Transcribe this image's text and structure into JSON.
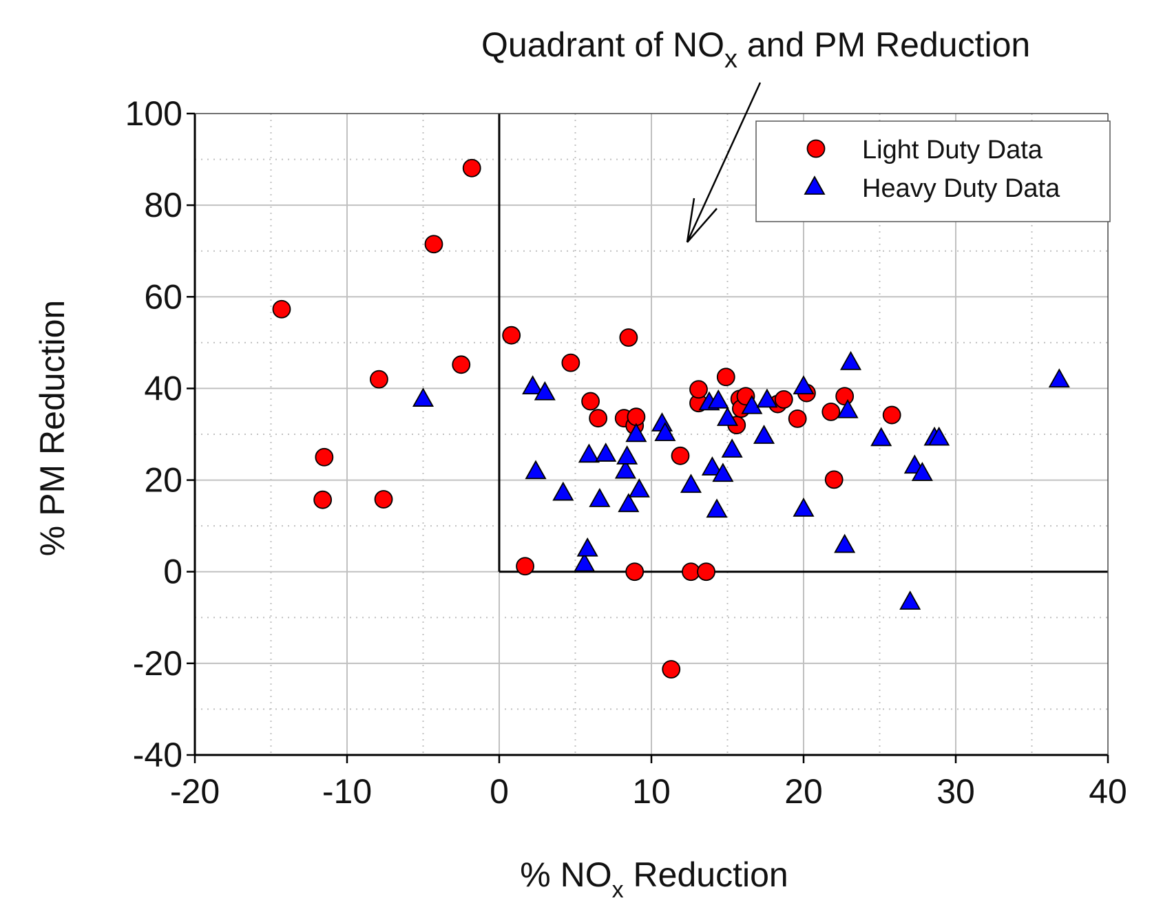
{
  "chart_data": {
    "type": "scatter",
    "title": "",
    "annotation": {
      "prefix": "Quadrant of NO",
      "subscript": "x",
      "suffix": " and PM Reduction"
    },
    "xlabel": {
      "prefix": "% NO",
      "subscript": "x",
      "suffix": " Reduction"
    },
    "ylabel": "% PM Reduction",
    "xlim": [
      -20,
      40
    ],
    "ylim": [
      -40,
      100
    ],
    "xticks": [
      -20,
      -10,
      0,
      10,
      20,
      30,
      40
    ],
    "yticks": [
      -40,
      -20,
      0,
      20,
      40,
      60,
      80,
      100
    ],
    "xgrid_minor": 5,
    "ygrid_minor": 10,
    "legend_position": "top-right",
    "colors": {
      "light_fill": "#ff0000",
      "heavy_fill": "#0000ff",
      "marker_stroke": "#000000",
      "major_grid": "#c0c0c0",
      "minor_grid": "#c0c0c0"
    },
    "series": [
      {
        "name": "Light Duty Data",
        "marker": "circle",
        "points": [
          [
            -14.3,
            57.3
          ],
          [
            -11.5,
            25.0
          ],
          [
            -11.6,
            15.7
          ],
          [
            -7.9,
            42.0
          ],
          [
            -7.6,
            15.8
          ],
          [
            -4.3,
            71.5
          ],
          [
            -1.8,
            88.1
          ],
          [
            -2.5,
            45.2
          ],
          [
            0.8,
            51.6
          ],
          [
            1.7,
            1.2
          ],
          [
            4.7,
            45.6
          ],
          [
            6.0,
            37.2
          ],
          [
            6.5,
            33.5
          ],
          [
            8.2,
            33.5
          ],
          [
            8.5,
            51.1
          ],
          [
            8.9,
            31.9
          ],
          [
            9.0,
            33.8
          ],
          [
            8.9,
            0.0
          ],
          [
            11.9,
            25.3
          ],
          [
            11.3,
            -21.3
          ],
          [
            12.6,
            0.0
          ],
          [
            13.1,
            36.8
          ],
          [
            13.1,
            39.8
          ],
          [
            13.6,
            0.0
          ],
          [
            14.9,
            42.5
          ],
          [
            15.6,
            32.0
          ],
          [
            15.8,
            37.7
          ],
          [
            15.9,
            35.6
          ],
          [
            16.2,
            38.3
          ],
          [
            18.3,
            36.6
          ],
          [
            18.7,
            37.6
          ],
          [
            19.6,
            33.4
          ],
          [
            20.2,
            39.0
          ],
          [
            21.8,
            34.9
          ],
          [
            22.0,
            20.1
          ],
          [
            22.7,
            38.3
          ],
          [
            25.8,
            34.2
          ]
        ]
      },
      {
        "name": "Heavy Duty Data",
        "marker": "triangle",
        "points": [
          [
            -5.0,
            37.5
          ],
          [
            2.2,
            40.2
          ],
          [
            2.4,
            21.7
          ],
          [
            3.0,
            38.9
          ],
          [
            4.2,
            17.0
          ],
          [
            5.6,
            1.5
          ],
          [
            5.8,
            4.8
          ],
          [
            5.9,
            25.3
          ],
          [
            6.6,
            15.6
          ],
          [
            7.0,
            25.5
          ],
          [
            8.3,
            21.8
          ],
          [
            8.4,
            24.9
          ],
          [
            8.5,
            14.5
          ],
          [
            9.0,
            29.8
          ],
          [
            9.2,
            17.7
          ],
          [
            10.7,
            32.1
          ],
          [
            10.9,
            30.0
          ],
          [
            12.6,
            18.7
          ],
          [
            13.8,
            36.7
          ],
          [
            14.0,
            22.5
          ],
          [
            14.3,
            13.3
          ],
          [
            14.4,
            37.1
          ],
          [
            14.7,
            21.1
          ],
          [
            15.0,
            33.3
          ],
          [
            15.3,
            26.4
          ],
          [
            16.6,
            35.9
          ],
          [
            17.4,
            29.4
          ],
          [
            17.6,
            37.3
          ],
          [
            20.0,
            13.5
          ],
          [
            20.0,
            40.2
          ],
          [
            22.7,
            5.6
          ],
          [
            22.9,
            35.0
          ],
          [
            23.1,
            45.5
          ],
          [
            25.1,
            28.9
          ],
          [
            27.0,
            -6.8
          ],
          [
            27.3,
            22.9
          ],
          [
            27.8,
            21.3
          ],
          [
            28.6,
            29.0
          ],
          [
            28.9,
            29.0
          ],
          [
            36.8,
            41.7
          ]
        ]
      }
    ]
  }
}
